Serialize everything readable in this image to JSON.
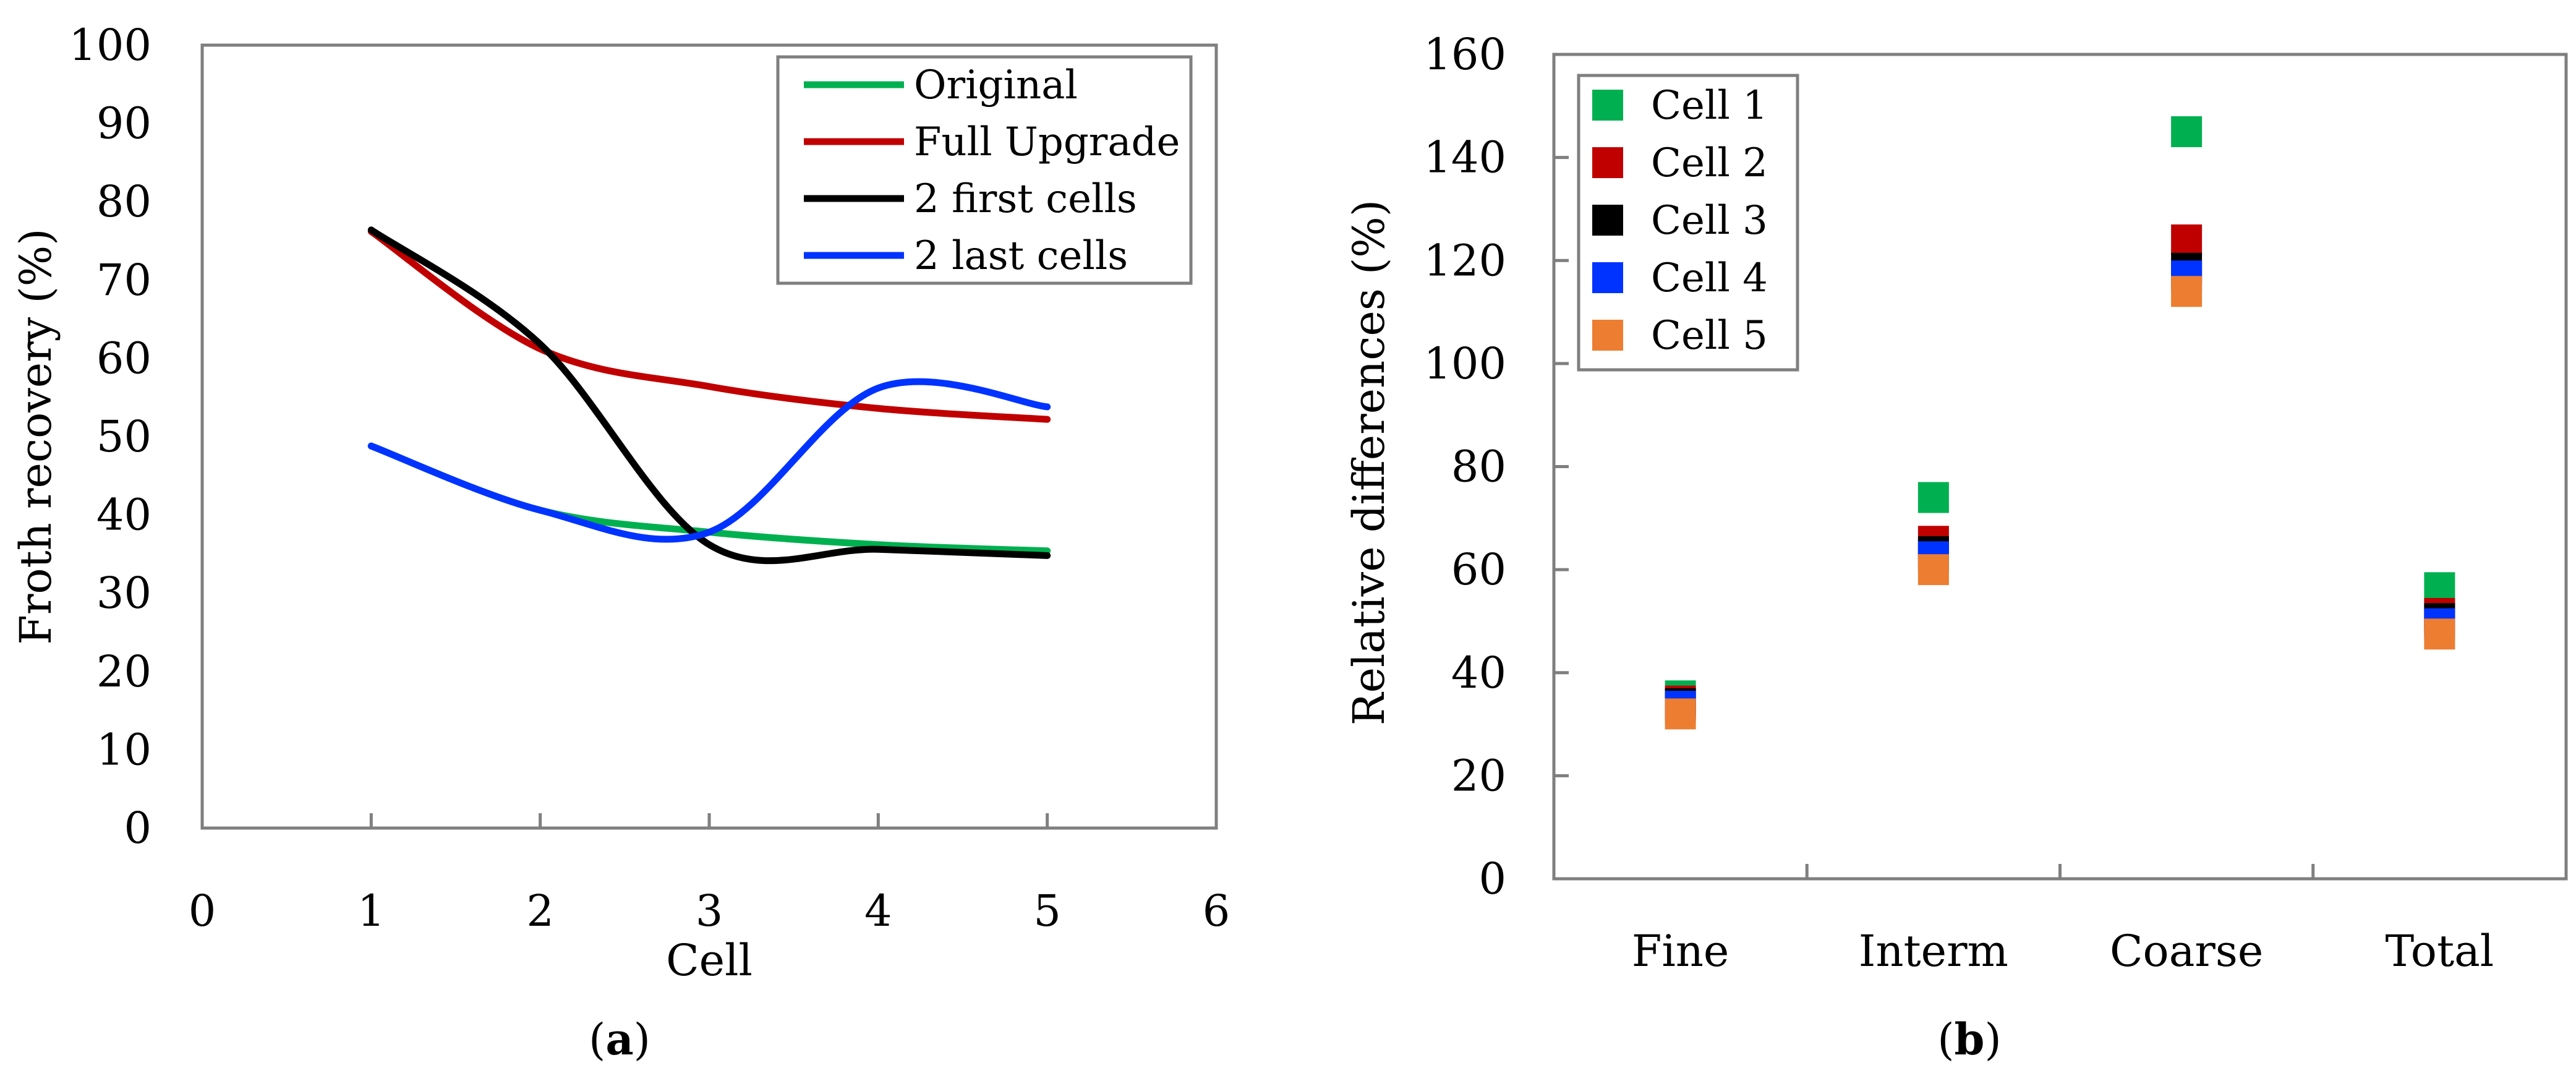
{
  "chart_data": [
    {
      "id": "a",
      "type": "line",
      "caption_open": "(",
      "caption_letter": "a",
      "caption_close": ")",
      "xlabel": "Cell",
      "ylabel": "Froth recovery (%)",
      "xlim": [
        0,
        6
      ],
      "ylim": [
        0,
        100
      ],
      "xticks": [
        0,
        1,
        2,
        3,
        4,
        5,
        6
      ],
      "yticks": [
        0,
        10,
        20,
        30,
        40,
        50,
        60,
        70,
        80,
        90,
        100
      ],
      "grid": false,
      "legend_position": "top-right",
      "series": [
        {
          "name": "Original",
          "color": "#00b050",
          "x": [
            1,
            2,
            3,
            4,
            5
          ],
          "y": [
            48.8,
            40.6,
            37.8,
            36.2,
            35.4
          ]
        },
        {
          "name": "Full Upgrade",
          "color": "#c00000",
          "x": [
            1,
            2,
            3,
            4,
            5
          ],
          "y": [
            76.2,
            61.2,
            56.4,
            53.6,
            52.2
          ]
        },
        {
          "name": "2 first cells",
          "color": "#000000",
          "x": [
            1,
            2,
            3,
            4,
            5
          ],
          "y": [
            76.4,
            61.8,
            36.2,
            35.6,
            34.8
          ]
        },
        {
          "name": "2 last cells",
          "color": "#0033ff",
          "x": [
            1,
            2,
            3,
            4,
            5
          ],
          "y": [
            48.8,
            40.6,
            37.8,
            56.2,
            53.8
          ]
        }
      ]
    },
    {
      "id": "b",
      "type": "scatter",
      "caption_open": "(",
      "caption_letter": "b",
      "caption_close": ")",
      "xlabel": "",
      "ylabel": "Relative differences (%)",
      "categories": [
        "Fine",
        "Interm",
        "Coarse",
        "Total"
      ],
      "ylim": [
        0,
        160
      ],
      "yticks": [
        0,
        20,
        40,
        60,
        80,
        100,
        120,
        140,
        160
      ],
      "grid": false,
      "legend_position": "top-left",
      "series": [
        {
          "name": "Cell 1",
          "color": "#00b050",
          "values": [
            35.5,
            74,
            145,
            56.5
          ]
        },
        {
          "name": "Cell 2",
          "color": "#c00000",
          "values": [
            34.5,
            65.5,
            124,
            51.5
          ]
        },
        {
          "name": "Cell 3",
          "color": "#000000",
          "values": [
            34,
            63.5,
            118.5,
            50.5
          ]
        },
        {
          "name": "Cell 4",
          "color": "#0033ff",
          "values": [
            33.5,
            62.5,
            117,
            49.5
          ]
        },
        {
          "name": "Cell 5",
          "color": "#ed7d31",
          "values": [
            32,
            60,
            114,
            47.5
          ]
        }
      ]
    }
  ]
}
